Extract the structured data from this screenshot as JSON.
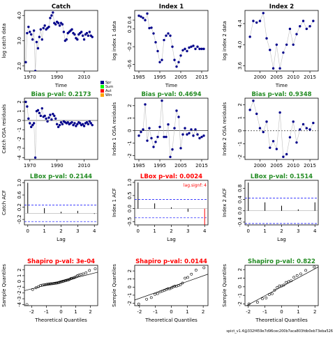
{
  "footer": "spict_v1.4@332f459e7d96cec200b7aca803fdb0eb73eba526",
  "chart_data": [
    {
      "type": "line",
      "kind": "timeseries",
      "title": "Catch",
      "title_color": "#000000",
      "xlabel": "Time",
      "ylabel": "log catch data",
      "xlim": [
        1966,
        2020
      ],
      "ylim": [
        1.8,
        4.2
      ],
      "xticks": [
        1970,
        1990,
        2010
      ],
      "xticklabels": [
        "1970",
        "1990",
        "2010"
      ],
      "yticks": [
        2.0,
        3.0,
        4.0
      ],
      "yticklabels": [
        "2.0",
        "3.0",
        "4.0"
      ],
      "x": [
        1967,
        1968,
        1969,
        1970,
        1971,
        1972,
        1973,
        1974,
        1975,
        1976,
        1977,
        1978,
        1979,
        1980,
        1981,
        1982,
        1983,
        1984,
        1985,
        1986,
        1987,
        1988,
        1989,
        1990,
        1991,
        1992,
        1993,
        1994,
        1995,
        1996,
        1997,
        1998,
        1999,
        2000,
        2001,
        2002,
        2003,
        2004,
        2005,
        2006,
        2007,
        2008,
        2009,
        2010,
        2011,
        2012,
        2013,
        2014,
        2015,
        2016
      ],
      "y": [
        2.15,
        3.3,
        3.55,
        3.35,
        3.25,
        3.05,
        3.4,
        1.8,
        2.95,
        2.7,
        3.15,
        3.45,
        3.05,
        3.5,
        3.6,
        3.45,
        3.5,
        3.55,
        3.9,
        4.0,
        4.12,
        3.7,
        3.65,
        3.75,
        3.7,
        3.6,
        3.7,
        3.65,
        3.35,
        3.0,
        3.05,
        3.3,
        3.35,
        3.4,
        3.45,
        3.3,
        3.25,
        3.1,
        3.05,
        3.25,
        3.3,
        3.35,
        3.2,
        3.05,
        3.25,
        3.3,
        3.2,
        3.35,
        3.2,
        3.15
      ],
      "line_color": "#c0c0c0",
      "point_color": "#00008b"
    },
    {
      "type": "line",
      "kind": "timeseries",
      "title": "Index 1",
      "title_color": "#000000",
      "xlabel": "Time",
      "ylabel": "log index 1 data",
      "xlim": [
        1983,
        2018
      ],
      "ylim": [
        -0.75,
        0.62
      ],
      "xticks": [
        1985,
        1995,
        2005,
        2015
      ],
      "xticklabels": [
        "1985",
        "1995",
        "2005",
        "2015"
      ],
      "yticks": [
        -0.6,
        -0.2,
        0.2,
        0.4
      ],
      "yticklabels": [
        "-0.6",
        "-0.2",
        "0.2",
        "0.4"
      ],
      "x": [
        1985,
        1986,
        1987,
        1988,
        1989,
        1990,
        1991,
        1992,
        1993,
        1994,
        1995,
        1996,
        1997,
        1998,
        1999,
        2000,
        2001,
        2002,
        2003,
        2004,
        2005,
        2006,
        2007,
        2008,
        2009,
        2010,
        2011,
        2012,
        2013,
        2014,
        2015,
        2016
      ],
      "y": [
        0.5,
        0.48,
        0.45,
        0.4,
        0.55,
        0.22,
        0.23,
        0.1,
        -0.1,
        -0.3,
        -0.55,
        -0.5,
        -0.05,
        0.05,
        0.1,
        0.05,
        -0.2,
        -0.5,
        -0.65,
        -0.55,
        -0.4,
        -0.28,
        -0.25,
        -0.3,
        -0.22,
        -0.2,
        -0.18,
        -0.25,
        -0.2,
        -0.25,
        -0.25,
        -0.25
      ],
      "line_color": "#c0c0c0",
      "point_color": "#00008b"
    },
    {
      "type": "line",
      "kind": "timeseries",
      "title": "Index 2",
      "title_color": "#000000",
      "xlabel": "Time",
      "ylabel": "log index 2 data",
      "xlim": [
        1995.5,
        2017.5
      ],
      "ylim": [
        3.5,
        4.65
      ],
      "xticks": [
        2000,
        2005,
        2010,
        2015
      ],
      "xticklabels": [
        "2000",
        "2005",
        "2010",
        "2015"
      ],
      "yticks": [
        3.6,
        4.0,
        4.4
      ],
      "yticklabels": [
        "3.6",
        "4.0",
        "4.4"
      ],
      "x": [
        1997,
        1998,
        1999,
        2000,
        2001,
        2002,
        2003,
        2004,
        2005,
        2006,
        2007,
        2008,
        2009,
        2010,
        2011,
        2012,
        2013,
        2014,
        2015,
        2016
      ],
      "y": [
        4.15,
        4.45,
        4.42,
        4.45,
        4.6,
        4.12,
        3.9,
        3.55,
        4.0,
        3.55,
        3.85,
        4.0,
        4.3,
        4.0,
        4.2,
        4.35,
        4.45,
        4.3,
        4.35,
        4.45
      ],
      "line_color": "#c0c0c0",
      "point_color": "#00008b"
    },
    {
      "type": "line",
      "kind": "residuals",
      "title": "Bias p-val: 0.2173",
      "title_color": "#228b22",
      "xlabel": "",
      "ylabel": "Catch OSA residuals",
      "xlim": [
        1966,
        2020
      ],
      "ylim": [
        -4.2,
        2.4
      ],
      "xticks": [
        1970,
        1990,
        2010
      ],
      "xticklabels": [
        "1970",
        "1990",
        "2010"
      ],
      "yticks": [
        -4,
        -3,
        -2,
        -1,
        0,
        1,
        2
      ],
      "yticklabels": [
        "-4",
        "-3",
        "-2",
        "-1",
        "0",
        "1",
        "2"
      ],
      "x": [
        1967,
        1968,
        1969,
        1970,
        1971,
        1972,
        1973,
        1974,
        1975,
        1976,
        1977,
        1978,
        1979,
        1980,
        1981,
        1982,
        1983,
        1984,
        1985,
        1986,
        1987,
        1988,
        1989,
        1990,
        1991,
        1992,
        1993,
        1994,
        1995,
        1996,
        1997,
        1998,
        1999,
        2000,
        2001,
        2002,
        2003,
        2004,
        2005,
        2006,
        2007,
        2008,
        2009,
        2010,
        2011,
        2012,
        2013,
        2014,
        2015,
        2016
      ],
      "y": [
        2.0,
        1.5,
        0.2,
        -0.3,
        -0.7,
        -0.5,
        -0.3,
        -4.0,
        1.0,
        1.1,
        0.8,
        0.5,
        1.3,
        0.4,
        0.5,
        0.2,
        -0.1,
        0.3,
        0.6,
        0.1,
        0.7,
        0.5,
        0.2,
        -0.4,
        -0.7,
        -0.5,
        -0.2,
        -0.4,
        -0.1,
        -0.2,
        -0.3,
        -0.2,
        -0.4,
        -0.3,
        -0.2,
        -0.5,
        -0.3,
        -0.6,
        -0.4,
        -0.2,
        -0.3,
        -0.5,
        -0.4,
        -0.6,
        -0.3,
        -0.2,
        -0.4,
        -0.1,
        -0.3,
        -0.5
      ],
      "zero_line": true,
      "zero_line_color": "#000000",
      "line_color": "#c0c0c0",
      "point_color": "#00008b",
      "legend": {
        "placement": "top-right",
        "labels": [
          "Spr",
          "Sum",
          "Aut",
          "Win"
        ],
        "colors": [
          "#00008b",
          "#00ff00",
          "#ff0000",
          "#ffa500"
        ]
      }
    },
    {
      "type": "line",
      "kind": "residuals",
      "title": "Bias p-val: 0.4694",
      "title_color": "#228b22",
      "xlabel": "",
      "ylabel": "Index 1 OSA residuals",
      "xlim": [
        1983,
        2018
      ],
      "ylim": [
        -2.3,
        2.6
      ],
      "xticks": [
        1985,
        1995,
        2005,
        2015
      ],
      "xticklabels": [
        "1985",
        "1995",
        "2005",
        "2015"
      ],
      "yticks": [
        -2,
        -1,
        0,
        1,
        2
      ],
      "yticklabels": [
        "-2",
        "-1",
        "0",
        "1",
        "2"
      ],
      "x": [
        1985,
        1986,
        1987,
        1988,
        1989,
        1990,
        1991,
        1992,
        1993,
        1994,
        1995,
        1996,
        1997,
        1998,
        1999,
        2000,
        2001,
        2002,
        2003,
        2004,
        2005,
        2006,
        2007,
        2008,
        2009,
        2010,
        2011,
        2012,
        2013,
        2014,
        2015,
        2016
      ],
      "y": [
        -0.4,
        -0.1,
        0.1,
        2.1,
        -0.8,
        0.2,
        -0.6,
        -1.3,
        -0.9,
        -0.5,
        0.3,
        2.4,
        -0.5,
        -0.5,
        0.5,
        -2.1,
        -1.5,
        0.2,
        1.6,
        1.1,
        -1.4,
        -0.3,
        0.2,
        -0.3,
        -0.2,
        0.1,
        -0.4,
        0.1,
        -0.3,
        -0.6,
        -0.5,
        -0.4
      ],
      "zero_line": true,
      "zero_line_color": "#000000",
      "line_color": "#c0c0c0",
      "point_color": "#00008b"
    },
    {
      "type": "line",
      "kind": "residuals",
      "title": "Bias p-val: 0.9348",
      "title_color": "#228b22",
      "xlabel": "",
      "ylabel": "Index 2 OSA residuals",
      "xlim": [
        1995.5,
        2017.5
      ],
      "ylim": [
        -2.2,
        2.5
      ],
      "xticks": [
        2000,
        2005,
        2010,
        2015
      ],
      "xticklabels": [
        "2000",
        "2005",
        "2010",
        "2015"
      ],
      "yticks": [
        -2,
        -1,
        0,
        1,
        2
      ],
      "yticklabels": [
        "-2",
        "-1",
        "0",
        "1",
        "2"
      ],
      "x": [
        1997,
        1998,
        1999,
        2000,
        2001,
        2002,
        2003,
        2004,
        2005,
        2006,
        2007,
        2008,
        2009,
        2010,
        2011,
        2012,
        2013,
        2014,
        2015,
        2016
      ],
      "y": [
        1.6,
        2.3,
        1.3,
        0.2,
        -0.1,
        0.7,
        -1.3,
        -0.8,
        -1.4,
        1.4,
        -2.0,
        -1.8,
        -0.5,
        0.7,
        -0.9,
        0.1,
        0.5,
        0.2,
        0.1,
        0.6
      ],
      "zero_line": true,
      "zero_line_color": "#000000",
      "zero_line_dashed": true,
      "line_color": "#c0c0c0",
      "point_color": "#00008b"
    },
    {
      "type": "bar",
      "kind": "acf",
      "title": "LBox p-val: 0.2144",
      "title_color": "#228b22",
      "xlabel": "Lag",
      "ylabel": "Catch ACF",
      "xlim": [
        -0.2,
        4.2
      ],
      "ylim": [
        -0.38,
        1.08
      ],
      "xticks": [
        0,
        1,
        2,
        3,
        4
      ],
      "xticklabels": [
        "0",
        "1",
        "2",
        "3",
        "4"
      ],
      "yticks": [
        -0.2,
        0.2,
        0.6,
        1.0
      ],
      "yticklabels": [
        "-0.2",
        "0.2",
        "0.6",
        "1.0"
      ],
      "lags": [
        0,
        1,
        2,
        3,
        4
      ],
      "values": [
        1.0,
        0.17,
        0.05,
        0.08,
        -0.02
      ],
      "conf_band": 0.27,
      "conf_color": "#0000ff",
      "bar_color": "#000000"
    },
    {
      "type": "bar",
      "kind": "acf",
      "title": "LBox p-val: 0.0024",
      "title_color": "#ff0000",
      "xlabel": "Lag",
      "ylabel": "Index 1 ACF",
      "xlim": [
        -0.2,
        4.2
      ],
      "ylim": [
        -0.62,
        1.08
      ],
      "xticks": [
        0,
        1,
        2,
        3,
        4
      ],
      "xticklabels": [
        "0",
        "1",
        "2",
        "3",
        "4"
      ],
      "yticks": [
        -0.5,
        0.0,
        0.5,
        1.0
      ],
      "yticklabels": [
        "-0.5",
        "0.0",
        "0.5",
        "1.0"
      ],
      "lags": [
        0,
        1,
        2,
        3,
        4
      ],
      "values": [
        1.0,
        0.2,
        0.05,
        -0.12,
        -0.62
      ],
      "highlight_lags": [
        4
      ],
      "highlight_color": "#ff0000",
      "conf_band": 0.35,
      "conf_color": "#0000ff",
      "bar_color": "#000000",
      "annotation": "lag.signf: 4",
      "annotation_color": "#ff0000"
    },
    {
      "type": "bar",
      "kind": "acf",
      "title": "LBox p-val: 0.1514",
      "title_color": "#228b22",
      "xlabel": "Lag",
      "ylabel": "Index 2 ACF",
      "xlim": [
        -0.2,
        4.2
      ],
      "ylim": [
        -0.5,
        1.08
      ],
      "xticks": [
        0,
        1,
        2,
        3,
        4
      ],
      "xticklabels": [
        "0",
        "1",
        "2",
        "3",
        "4"
      ],
      "yticks": [
        -0.4,
        0.0,
        0.4,
        0.8
      ],
      "yticklabels": [
        "-0.4",
        "0.0",
        "0.4",
        "0.8"
      ],
      "lags": [
        0,
        1,
        2,
        3,
        4
      ],
      "values": [
        1.0,
        0.3,
        0.18,
        0.05,
        0.3
      ],
      "conf_band": 0.45,
      "conf_color": "#0000ff",
      "bar_color": "#000000"
    },
    {
      "type": "scatter",
      "kind": "qq",
      "title": "Shapiro p-val: 3e-04",
      "title_color": "#ff0000",
      "xlabel": "Theoretical Quantiles",
      "ylabel": "Sample Quantiles",
      "xlim": [
        -2.5,
        2.5
      ],
      "ylim": [
        -4.2,
        2.8
      ],
      "xticks": [
        -2,
        -1,
        0,
        1,
        2
      ],
      "xticklabels": [
        "-2",
        "-1",
        "0",
        "1",
        "2"
      ],
      "yticks": [
        -4,
        -3,
        -2,
        -1,
        0,
        1,
        2
      ],
      "yticklabels": [
        "-4",
        "-3",
        "-2",
        "-1",
        "0",
        "1",
        "2"
      ],
      "x": [
        -2.33,
        -1.94,
        -1.71,
        -1.54,
        -1.4,
        -1.28,
        -1.17,
        -1.07,
        -0.98,
        -0.89,
        -0.81,
        -0.73,
        -0.66,
        -0.58,
        -0.51,
        -0.44,
        -0.37,
        -0.3,
        -0.24,
        -0.17,
        -0.1,
        -0.04,
        0.03,
        0.1,
        0.17,
        0.24,
        0.31,
        0.38,
        0.45,
        0.52,
        0.6,
        0.68,
        0.75,
        0.84,
        0.93,
        1.02,
        1.12,
        1.23,
        1.36,
        1.51,
        1.7,
        1.94,
        2.33
      ],
      "y": [
        -4.0,
        -1.4,
        -1.1,
        -0.9,
        -0.7,
        -0.65,
        -0.6,
        -0.55,
        -0.5,
        -0.48,
        -0.45,
        -0.42,
        -0.4,
        -0.38,
        -0.35,
        -0.32,
        -0.3,
        -0.28,
        -0.25,
        -0.2,
        -0.15,
        -0.1,
        -0.05,
        0.0,
        0.05,
        0.1,
        0.15,
        0.2,
        0.25,
        0.3,
        0.4,
        0.5,
        0.55,
        0.6,
        0.7,
        0.8,
        1.0,
        1.1,
        1.2,
        1.3,
        1.5,
        1.9,
        2.2
      ],
      "ref_line": [
        [
          -2.5,
          -1.6
        ],
        [
          2.5,
          1.6
        ]
      ],
      "point_color": "#000000",
      "line_color": "#000000"
    },
    {
      "type": "scatter",
      "kind": "qq",
      "title": "Shapiro p-val: 0.0144",
      "title_color": "#ff0000",
      "xlabel": "Theoretical Quantiles",
      "ylabel": "Sample Quantiles",
      "xlim": [
        -2.3,
        2.3
      ],
      "ylim": [
        -2.3,
        2.7
      ],
      "xticks": [
        -2,
        -1,
        0,
        1,
        2
      ],
      "xticklabels": [
        "-2",
        "-1",
        "0",
        "1",
        "2"
      ],
      "yticks": [
        -2,
        -1,
        0,
        1,
        2
      ],
      "yticklabels": [
        "-2",
        "-1",
        "0",
        "1",
        "2"
      ],
      "x": [
        -2.05,
        -1.55,
        -1.26,
        -1.03,
        -0.86,
        -0.7,
        -0.57,
        -0.44,
        -0.32,
        -0.21,
        -0.1,
        0.0,
        0.1,
        0.21,
        0.32,
        0.44,
        0.57,
        0.7,
        0.86,
        1.03,
        1.26,
        1.55,
        2.05
      ],
      "y": [
        -2.1,
        -1.5,
        -1.3,
        -0.9,
        -0.8,
        -0.6,
        -0.5,
        -0.4,
        -0.3,
        -0.2,
        -0.2,
        -0.1,
        0.0,
        0.1,
        0.1,
        0.2,
        0.3,
        0.5,
        1.1,
        1.2,
        1.6,
        2.1,
        2.4
      ],
      "ref_line": [
        [
          -2.3,
          -1.6
        ],
        [
          2.3,
          1.6
        ]
      ],
      "point_color": "#000000",
      "line_color": "#000000"
    },
    {
      "type": "scatter",
      "kind": "qq",
      "title": "Shapiro p-val: 0.822",
      "title_color": "#228b22",
      "xlabel": "Theoretical Quantiles",
      "ylabel": "Sample Quantiles",
      "xlim": [
        -2.2,
        2.2
      ],
      "ylim": [
        -2.2,
        2.5
      ],
      "xticks": [
        -2,
        -1,
        0,
        1,
        2
      ],
      "xticklabels": [
        "-2",
        "-1",
        "0",
        "1",
        "2"
      ],
      "yticks": [
        -2,
        -1,
        0,
        1,
        2
      ],
      "yticklabels": [
        "-2",
        "-1",
        "0",
        "1",
        "2"
      ],
      "x": [
        -1.96,
        -1.45,
        -1.15,
        -0.93,
        -0.74,
        -0.57,
        -0.42,
        -0.27,
        -0.13,
        0.0,
        0.13,
        0.27,
        0.42,
        0.57,
        0.74,
        0.93,
        1.15,
        1.45,
        1.96
      ],
      "y": [
        -2.0,
        -1.8,
        -1.4,
        -1.3,
        -0.9,
        -0.8,
        -0.4,
        -0.1,
        0.1,
        0.1,
        0.2,
        0.5,
        0.6,
        0.7,
        1.1,
        1.3,
        1.5,
        1.9,
        2.3
      ],
      "ref_line": [
        [
          -2.2,
          -2.3
        ],
        [
          2.2,
          2.3
        ]
      ],
      "point_color": "#000000",
      "line_color": "#000000"
    }
  ]
}
